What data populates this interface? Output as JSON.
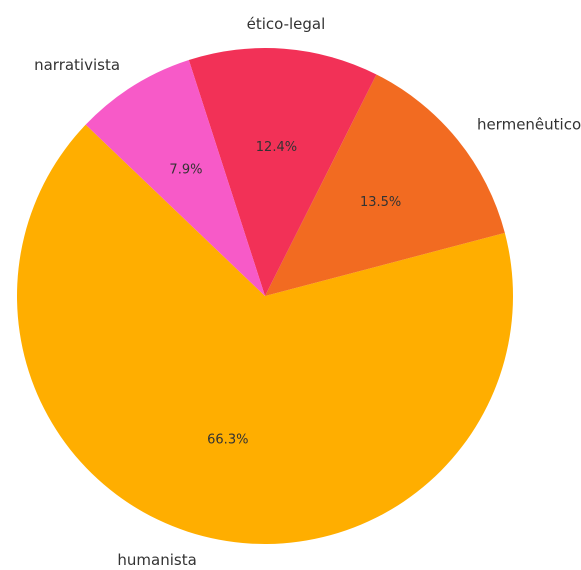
{
  "chart_data": {
    "type": "pie",
    "title": "",
    "slices": [
      {
        "label": "humanista",
        "value": 66.3,
        "percent_label": "66.3%",
        "color": "#FFAE00"
      },
      {
        "label": "hermenêutico",
        "value": 13.5,
        "percent_label": "13.5%",
        "color": "#F26B21"
      },
      {
        "label": "ético-legal",
        "value": 12.4,
        "percent_label": "12.4%",
        "color": "#F23157"
      },
      {
        "label": "narrativista",
        "value": 7.9,
        "percent_label": "7.9%",
        "color": "#F75AC8"
      }
    ]
  }
}
